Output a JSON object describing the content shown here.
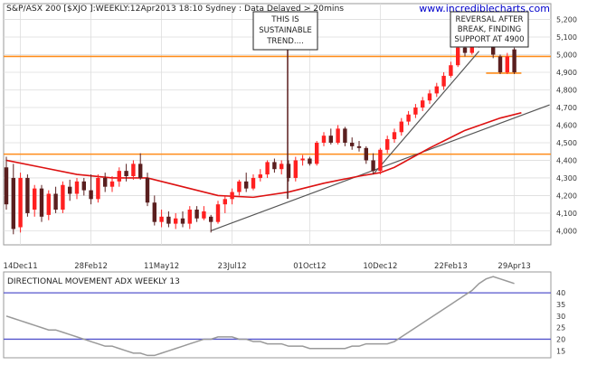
{
  "header": {
    "text": "S&P/ASX 200 [$XJO ]:WEEKLY:12Apr2013 18:10 Sydney : Data Delayed > 20mins",
    "watermark": "www.incrediblecharts.com"
  },
  "annotations": {
    "sustainable": [
      "THIS IS",
      "SUSTAINABLE",
      "TREND...."
    ],
    "reversal": [
      "REVERSAL AFTER",
      "BREAK, FINDING",
      "SUPPORT AT 4900"
    ]
  },
  "indicator": {
    "title": "DIRECTIONAL MOVEMENT ADX WEEKLY 13"
  },
  "colors": {
    "up": "#ff2020",
    "down": "#5a1f1f",
    "ma": "#dd1111",
    "trendline": "#555555",
    "support": "#ff8c1a",
    "adx_band": "#5555cc",
    "adx_line": "#999999",
    "grid": "#dddddd",
    "watermark": "#0000cc"
  },
  "chart_data": [
    {
      "type": "candlestick",
      "title": "S&P/ASX 200 [$XJO ]:WEEKLY:12Apr2013 18:10 Sydney : Data Delayed > 20mins",
      "y_range": [
        3920,
        5290
      ],
      "y_ticks": [
        4000,
        4100,
        4200,
        4300,
        4400,
        4500,
        4600,
        4700,
        4800,
        4900,
        5000,
        5100,
        5200
      ],
      "x_tick_labels": [
        {
          "index": 2,
          "label": "14Dec11"
        },
        {
          "index": 12,
          "label": "28Feb12"
        },
        {
          "index": 22,
          "label": "11May12"
        },
        {
          "index": 32,
          "label": "23Jul12"
        },
        {
          "index": 43,
          "label": "01Oct12"
        },
        {
          "index": 53,
          "label": "10Dec12"
        },
        {
          "index": 63,
          "label": "22Feb13"
        },
        {
          "index": 72,
          "label": "29Apr13"
        }
      ],
      "candles": [
        {
          "o": 4360,
          "h": 4420,
          "l": 4120,
          "c": 4150
        },
        {
          "o": 4300,
          "h": 4380,
          "l": 3980,
          "c": 4010
        },
        {
          "o": 4020,
          "h": 4330,
          "l": 3990,
          "c": 4300
        },
        {
          "o": 4300,
          "h": 4320,
          "l": 4080,
          "c": 4100
        },
        {
          "o": 4120,
          "h": 4260,
          "l": 4080,
          "c": 4240
        },
        {
          "o": 4240,
          "h": 4260,
          "l": 4050,
          "c": 4080
        },
        {
          "o": 4090,
          "h": 4230,
          "l": 4060,
          "c": 4210
        },
        {
          "o": 4210,
          "h": 4250,
          "l": 4100,
          "c": 4120
        },
        {
          "o": 4120,
          "h": 4280,
          "l": 4100,
          "c": 4260
        },
        {
          "o": 4250,
          "h": 4290,
          "l": 4170,
          "c": 4210
        },
        {
          "o": 4210,
          "h": 4300,
          "l": 4180,
          "c": 4280
        },
        {
          "o": 4280,
          "h": 4300,
          "l": 4200,
          "c": 4230
        },
        {
          "o": 4230,
          "h": 4320,
          "l": 4150,
          "c": 4180
        },
        {
          "o": 4180,
          "h": 4320,
          "l": 4160,
          "c": 4300
        },
        {
          "o": 4300,
          "h": 4330,
          "l": 4220,
          "c": 4250
        },
        {
          "o": 4250,
          "h": 4310,
          "l": 4220,
          "c": 4280
        },
        {
          "o": 4280,
          "h": 4360,
          "l": 4250,
          "c": 4340
        },
        {
          "o": 4340,
          "h": 4380,
          "l": 4280,
          "c": 4310
        },
        {
          "o": 4310,
          "h": 4400,
          "l": 4290,
          "c": 4380
        },
        {
          "o": 4380,
          "h": 4440,
          "l": 4290,
          "c": 4300
        },
        {
          "o": 4300,
          "h": 4330,
          "l": 4140,
          "c": 4160
        },
        {
          "o": 4160,
          "h": 4200,
          "l": 4030,
          "c": 4050
        },
        {
          "o": 4050,
          "h": 4120,
          "l": 4020,
          "c": 4080
        },
        {
          "o": 4080,
          "h": 4110,
          "l": 4020,
          "c": 4040
        },
        {
          "o": 4040,
          "h": 4100,
          "l": 4010,
          "c": 4070
        },
        {
          "o": 4070,
          "h": 4110,
          "l": 4020,
          "c": 4040
        },
        {
          "o": 4040,
          "h": 4140,
          "l": 4010,
          "c": 4120
        },
        {
          "o": 4120,
          "h": 4140,
          "l": 4050,
          "c": 4070
        },
        {
          "o": 4070,
          "h": 4140,
          "l": 4060,
          "c": 4110
        },
        {
          "o": 4080,
          "h": 4090,
          "l": 3990,
          "c": 4050
        },
        {
          "o": 4050,
          "h": 4170,
          "l": 4040,
          "c": 4150
        },
        {
          "o": 4150,
          "h": 4200,
          "l": 4100,
          "c": 4180
        },
        {
          "o": 4180,
          "h": 4240,
          "l": 4150,
          "c": 4220
        },
        {
          "o": 4220,
          "h": 4290,
          "l": 4200,
          "c": 4280
        },
        {
          "o": 4280,
          "h": 4330,
          "l": 4220,
          "c": 4240
        },
        {
          "o": 4240,
          "h": 4320,
          "l": 4230,
          "c": 4300
        },
        {
          "o": 4300,
          "h": 4350,
          "l": 4280,
          "c": 4320
        },
        {
          "o": 4320,
          "h": 4400,
          "l": 4300,
          "c": 4390
        },
        {
          "o": 4390,
          "h": 4410,
          "l": 4330,
          "c": 4350
        },
        {
          "o": 4350,
          "h": 4400,
          "l": 4320,
          "c": 4380
        },
        {
          "o": 4380,
          "h": 4400,
          "l": 4280,
          "c": 4300
        },
        {
          "o": 4300,
          "h": 4420,
          "l": 4280,
          "c": 4400
        },
        {
          "o": 4400,
          "h": 4430,
          "l": 4370,
          "c": 4410
        },
        {
          "o": 4410,
          "h": 4420,
          "l": 4370,
          "c": 4380
        },
        {
          "o": 4380,
          "h": 4510,
          "l": 4370,
          "c": 4500
        },
        {
          "o": 4500,
          "h": 4560,
          "l": 4480,
          "c": 4540
        },
        {
          "o": 4540,
          "h": 4580,
          "l": 4490,
          "c": 4500
        },
        {
          "o": 4500,
          "h": 4600,
          "l": 4490,
          "c": 4580
        },
        {
          "o": 4580,
          "h": 4590,
          "l": 4480,
          "c": 4500
        },
        {
          "o": 4500,
          "h": 4530,
          "l": 4460,
          "c": 4480
        },
        {
          "o": 4480,
          "h": 4510,
          "l": 4450,
          "c": 4470
        },
        {
          "o": 4470,
          "h": 4480,
          "l": 4380,
          "c": 4400
        },
        {
          "o": 4400,
          "h": 4440,
          "l": 4320,
          "c": 4340
        },
        {
          "o": 4340,
          "h": 4470,
          "l": 4320,
          "c": 4460
        },
        {
          "o": 4460,
          "h": 4540,
          "l": 4440,
          "c": 4520
        },
        {
          "o": 4520,
          "h": 4580,
          "l": 4500,
          "c": 4560
        },
        {
          "o": 4560,
          "h": 4640,
          "l": 4540,
          "c": 4620
        },
        {
          "o": 4620,
          "h": 4680,
          "l": 4600,
          "c": 4660
        },
        {
          "o": 4660,
          "h": 4720,
          "l": 4640,
          "c": 4700
        },
        {
          "o": 4700,
          "h": 4760,
          "l": 4680,
          "c": 4740
        },
        {
          "o": 4740,
          "h": 4800,
          "l": 4720,
          "c": 4780
        },
        {
          "o": 4780,
          "h": 4840,
          "l": 4760,
          "c": 4820
        },
        {
          "o": 4820,
          "h": 4900,
          "l": 4800,
          "c": 4880
        },
        {
          "o": 4880,
          "h": 4960,
          "l": 4870,
          "c": 4940
        },
        {
          "o": 4940,
          "h": 5060,
          "l": 4930,
          "c": 5040
        },
        {
          "o": 5040,
          "h": 5070,
          "l": 4990,
          "c": 5010
        },
        {
          "o": 5010,
          "h": 5110,
          "l": 5000,
          "c": 5090
        },
        {
          "o": 5090,
          "h": 5130,
          "l": 5040,
          "c": 5070
        },
        {
          "o": 5070,
          "h": 5180,
          "l": 5060,
          "c": 5140
        },
        {
          "o": 5140,
          "h": 5150,
          "l": 4980,
          "c": 5000
        },
        {
          "o": 4990,
          "h": 5000,
          "l": 4890,
          "c": 4900
        },
        {
          "o": 4900,
          "h": 5010,
          "l": 4890,
          "c": 4990
        },
        {
          "o": 5030,
          "h": 5040,
          "l": 4890,
          "c": 4900
        }
      ],
      "moving_average": [
        {
          "i": 0,
          "v": 4400
        },
        {
          "i": 5,
          "v": 4360
        },
        {
          "i": 10,
          "v": 4320
        },
        {
          "i": 15,
          "v": 4300
        },
        {
          "i": 20,
          "v": 4300
        },
        {
          "i": 25,
          "v": 4250
        },
        {
          "i": 30,
          "v": 4200
        },
        {
          "i": 35,
          "v": 4190
        },
        {
          "i": 40,
          "v": 4220
        },
        {
          "i": 45,
          "v": 4270
        },
        {
          "i": 50,
          "v": 4310
        },
        {
          "i": 53,
          "v": 4330
        },
        {
          "i": 55,
          "v": 4360
        },
        {
          "i": 60,
          "v": 4470
        },
        {
          "i": 65,
          "v": 4570
        },
        {
          "i": 70,
          "v": 4640
        },
        {
          "i": 73,
          "v": 4670
        }
      ],
      "trendlines": [
        {
          "from": {
            "i": 29,
            "v": 4000
          },
          "to": {
            "i": 77,
            "v": 4715
          }
        },
        {
          "from": {
            "i": 52,
            "v": 4320
          },
          "to": {
            "i": 67,
            "v": 5020
          }
        }
      ],
      "horizontal_lines": [
        {
          "v": 4990,
          "role": "resistance"
        },
        {
          "v": 4435,
          "role": "resistance"
        },
        {
          "v": 4895,
          "from_i": 68,
          "to_i": 73,
          "role": "support"
        }
      ]
    },
    {
      "type": "line",
      "title": "DIRECTIONAL MOVEMENT ADX WEEKLY 13",
      "y_range": [
        12,
        49
      ],
      "y_ticks": [
        15,
        20,
        25,
        30,
        35,
        40
      ],
      "bands": [
        40,
        20
      ],
      "series": [
        {
          "values": [
            30,
            29,
            28,
            27,
            26,
            25,
            24,
            24,
            23,
            22,
            21,
            20,
            19,
            18,
            17,
            17,
            16,
            15,
            14,
            14,
            13,
            13,
            14,
            15,
            16,
            17,
            18,
            19,
            20,
            20,
            21,
            21,
            21,
            20,
            20,
            19,
            19,
            18,
            18,
            18,
            17,
            17,
            17,
            16,
            16,
            16,
            16,
            16,
            16,
            17,
            17,
            18,
            18,
            18,
            18,
            19,
            21,
            23,
            25,
            27,
            29,
            31,
            33,
            35,
            37,
            39,
            41,
            44,
            46,
            47,
            46,
            45,
            44
          ]
        }
      ]
    }
  ]
}
